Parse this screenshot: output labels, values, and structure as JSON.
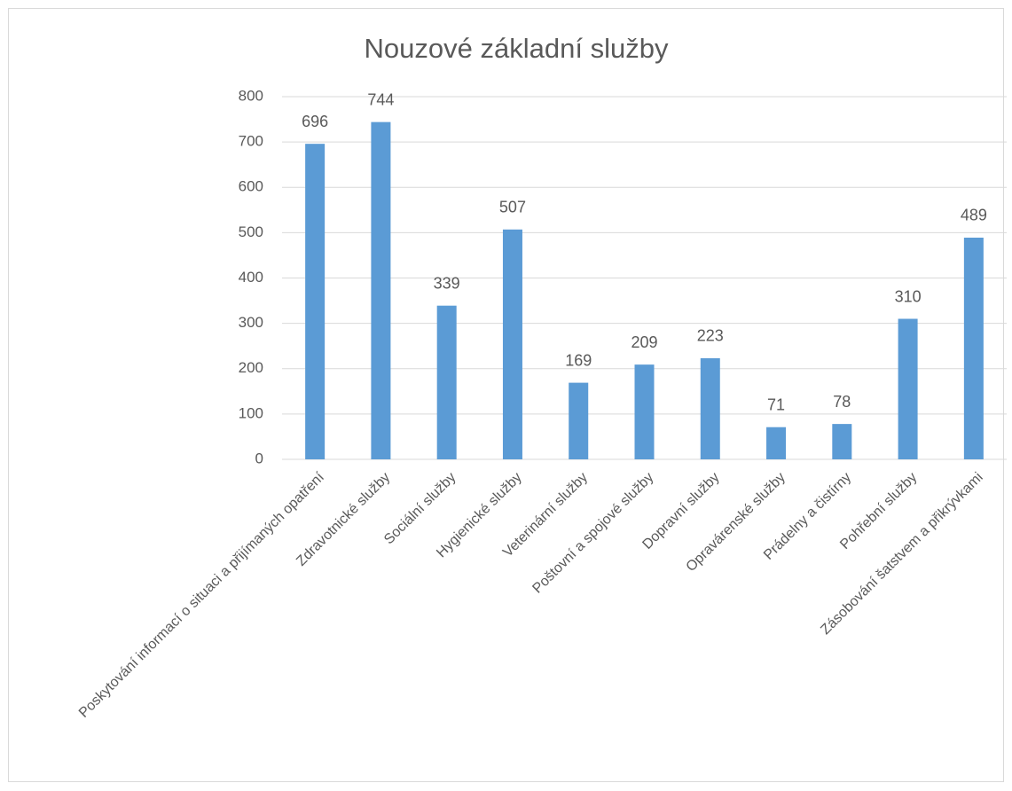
{
  "chart_data": {
    "type": "bar",
    "title": "Nouzové základní služby",
    "categories": [
      "Poskytování informací o situaci a přijímaných opatření",
      "Zdravotnické služby",
      "Sociální služby",
      "Hygienické služby",
      "Veterinární služby",
      "Poštovní a spojové služby",
      "Dopravní služby",
      "Opravárenské služby",
      "Prádelny a čistírny",
      "Pohřební služby",
      "Zásobování šatstvem a přikrývkami"
    ],
    "values": [
      696,
      744,
      339,
      507,
      169,
      209,
      223,
      71,
      78,
      310,
      489
    ],
    "color": "#5b9bd5",
    "ylim": [
      0,
      800
    ],
    "yticks": [
      0,
      100,
      200,
      300,
      400,
      500,
      600,
      700,
      800
    ],
    "grid": true
  }
}
